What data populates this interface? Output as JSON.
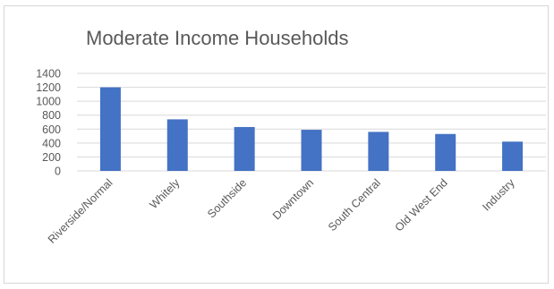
{
  "chart_data": {
    "type": "bar",
    "title": "Moderate Income Households",
    "xlabel": "",
    "ylabel": "",
    "categories": [
      "Riverside/Normal",
      "Whitely",
      "Southside",
      "Downtown",
      "South Central",
      "Old West End",
      "Industry"
    ],
    "values": [
      1200,
      740,
      630,
      590,
      560,
      530,
      420
    ],
    "ylim": [
      0,
      1400
    ],
    "yticks": [
      "0",
      "200",
      "400",
      "600",
      "800",
      "1000",
      "1200",
      "1400"
    ],
    "grid": true,
    "legend": "none",
    "bar_color": "#4472c4",
    "grid_color": "#d9d9d9"
  }
}
